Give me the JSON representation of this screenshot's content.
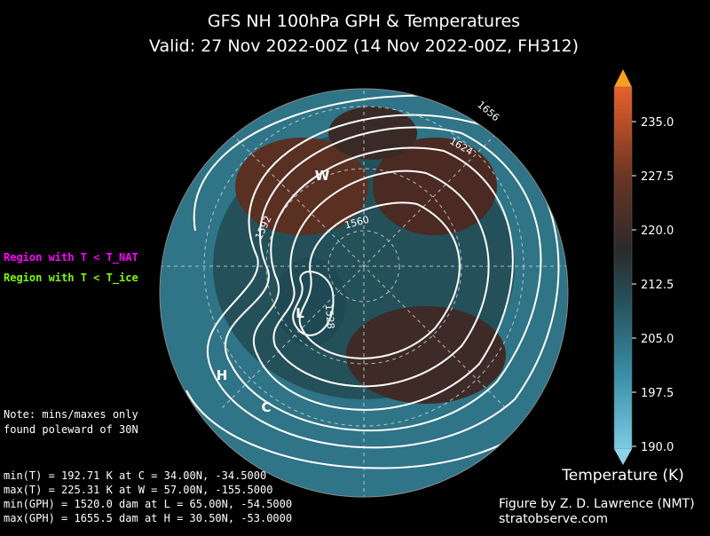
{
  "header": {
    "title": "GFS NH 100hPa GPH & Temperatures",
    "subtitle": "Valid: 27 Nov 2022-00Z  (14 Nov 2022-00Z, FH312)"
  },
  "legend": {
    "nat": "Region with T < T_NAT",
    "ice": "Region with T < T_ice"
  },
  "note": [
    "Note: mins/maxes only",
    "found poleward of 30N"
  ],
  "stats": [
    "min(T) = 192.71 K at C = 34.00N,  -34.5000",
    "max(T) = 225.31 K at W = 57.00N, -155.5000",
    "min(GPH) = 1520.0 dam at L = 65.00N,  -54.5000",
    "max(GPH) = 1655.5 dam at H = 30.50N,  -53.0000"
  ],
  "map": {
    "markers": [
      "W",
      "L",
      "H",
      "C"
    ],
    "contour_labels": [
      "1656",
      "1624",
      "1592",
      "1560",
      "1528"
    ]
  },
  "colorbar": {
    "label": "Temperature (K)",
    "ticks": [
      "190.0",
      "197.5",
      "205.0",
      "212.5",
      "220.0",
      "227.5",
      "235.0"
    ]
  },
  "credits": [
    "Figure by Z. D. Lawrence (NMT)",
    "stratobserve.com"
  ]
}
